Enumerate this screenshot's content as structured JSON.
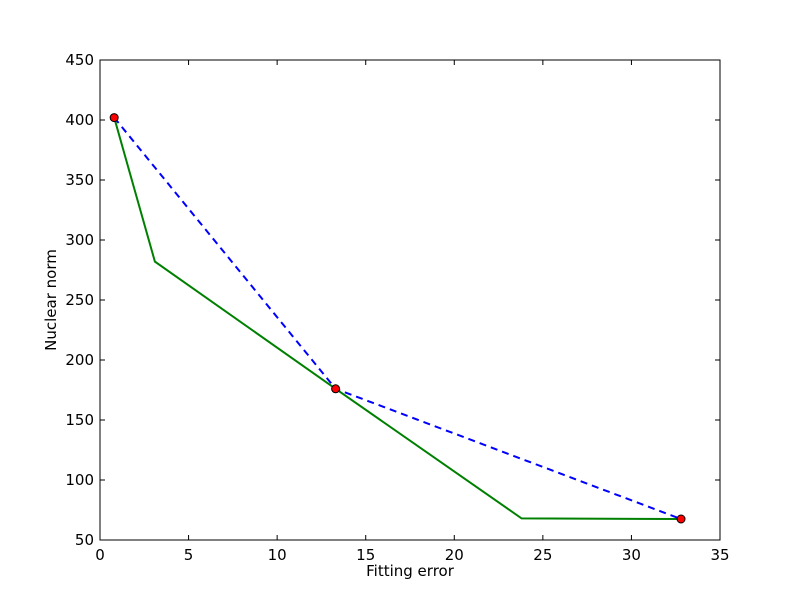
{
  "chart_data": {
    "type": "line",
    "xlabel": "Fitting error",
    "ylabel": "Nuclear norm",
    "xlim": [
      0,
      35
    ],
    "ylim": [
      50,
      450
    ],
    "x_ticks": [
      0,
      5,
      10,
      15,
      20,
      25,
      30,
      35
    ],
    "y_ticks": [
      50,
      100,
      150,
      200,
      250,
      300,
      350,
      400,
      450
    ],
    "grid": false,
    "series": [
      {
        "style": "solid",
        "color": "#008000",
        "x": [
          0.8,
          3.1,
          13.3,
          23.8,
          32.8
        ],
        "y": [
          402,
          282,
          176,
          68,
          67.5
        ]
      },
      {
        "style": "dashed",
        "color": "#0000ff",
        "x": [
          0.8,
          13.3,
          32.8
        ],
        "y": [
          402,
          176,
          67.5
        ]
      },
      {
        "style": "markers",
        "color": "#ff0000",
        "x": [
          0.8,
          13.3,
          32.8
        ],
        "y": [
          402,
          176,
          67.5
        ]
      }
    ]
  }
}
